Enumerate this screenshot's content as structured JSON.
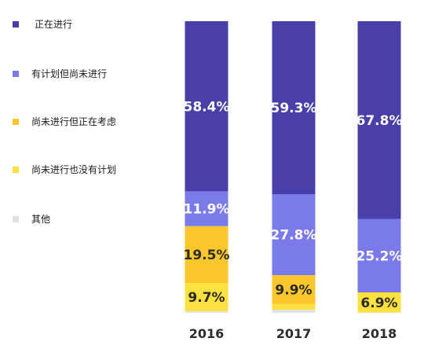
{
  "chart_data": {
    "type": "bar",
    "stacked": true,
    "categories": [
      "2016",
      "2017",
      "2018"
    ],
    "series": [
      {
        "name": "正在进行",
        "color": "#4840A8",
        "values": [
          58.4,
          59.3,
          67.8
        ],
        "labels": [
          "58.4%",
          "59.3%",
          "67.8%"
        ],
        "label_color": "#ffffff"
      },
      {
        "name": "有计划但尚未进行",
        "color": "#7B7AEA",
        "values": [
          11.9,
          27.8,
          25.2
        ],
        "labels": [
          "11.9%",
          "27.8%",
          "25.2%"
        ],
        "label_color": "#ffffff"
      },
      {
        "name": "尚未进行但正在考虑",
        "color": "#FCC62D",
        "values": [
          19.5,
          9.9,
          0
        ],
        "labels": [
          "19.5%",
          "9.9%",
          ""
        ],
        "label_color": "#2b2b2b"
      },
      {
        "name": "尚未进行也没有计划",
        "color": "#FDE141",
        "values": [
          9.7,
          2.0,
          6.9
        ],
        "labels": [
          "9.7%",
          "",
          "6.9%"
        ],
        "label_color": "#2b2b2b"
      },
      {
        "name": "其他",
        "color": "#DDE1EA",
        "values": [
          0.5,
          1.0,
          0.1
        ],
        "labels": [
          "",
          "",
          ""
        ],
        "label_color": "#2b2b2b"
      }
    ],
    "ylim": [
      0,
      100
    ],
    "grid": false,
    "legend_position": "left"
  }
}
